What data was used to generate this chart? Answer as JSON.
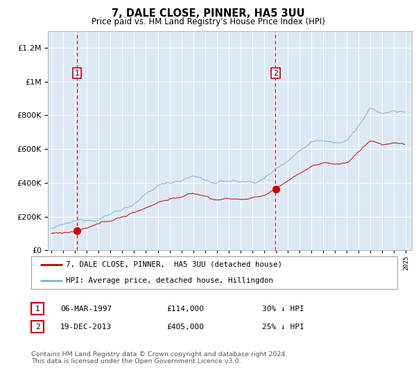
{
  "title": "7, DALE CLOSE, PINNER, HA5 3UU",
  "subtitle": "Price paid vs. HM Land Registry's House Price Index (HPI)",
  "bg_color": "#dce9f5",
  "hpi_color": "#7ab3d4",
  "price_color": "#cc0000",
  "sale1_date": 1997.18,
  "sale1_price": 114000,
  "sale2_date": 2013.97,
  "sale2_price": 405000,
  "ylim": [
    0,
    1300000
  ],
  "xlim": [
    1994.7,
    2025.5
  ],
  "legend_line1": "7, DALE CLOSE, PINNER,  HA5 3UU (detached house)",
  "legend_line2": "HPI: Average price, detached house, Hillingdon",
  "table_row1": [
    "1",
    "06-MAR-1997",
    "£114,000",
    "30% ↓ HPI"
  ],
  "table_row2": [
    "2",
    "19-DEC-2013",
    "£405,000",
    "25% ↓ HPI"
  ],
  "footnote": "Contains HM Land Registry data © Crown copyright and database right 2024.\nThis data is licensed under the Open Government Licence v3.0."
}
